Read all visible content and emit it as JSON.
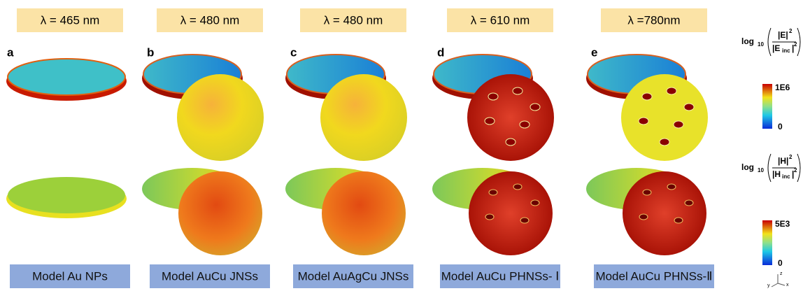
{
  "panels": [
    {
      "wavelength": "λ = 465 nm",
      "letter": "a",
      "model": "Model Au NPs"
    },
    {
      "wavelength": "λ = 480 nm",
      "letter": "b",
      "model": "Model AuCu JNSs"
    },
    {
      "wavelength": "λ = 480 nm",
      "letter": "c",
      "model": "Model AuAgCu JNSs"
    },
    {
      "wavelength": "λ = 610 nm",
      "letter": "d",
      "model": "Model AuCu PHNSs- Ⅰ"
    },
    {
      "wavelength": "λ =780nm",
      "letter": "e",
      "model": "Model AuCu PHNSs-Ⅱ"
    }
  ],
  "colorbars": [
    {
      "log": "log",
      "base": "10",
      "numerator": "|E|",
      "numerator_power": "2",
      "denominator": "|E",
      "denominator_sub": "inc",
      "denominator_close": "|",
      "denominator_power": "2",
      "max": "1E6",
      "min": "0"
    },
    {
      "log": "log",
      "base": "10",
      "numerator": "|H|",
      "numerator_power": "2",
      "denominator": "|H",
      "denominator_sub": "inc",
      "denominator_close": "|",
      "denominator_power": "2",
      "max": "5E3",
      "min": "0"
    }
  ],
  "axes": {
    "z": "z",
    "y": "y",
    "x": "x"
  }
}
